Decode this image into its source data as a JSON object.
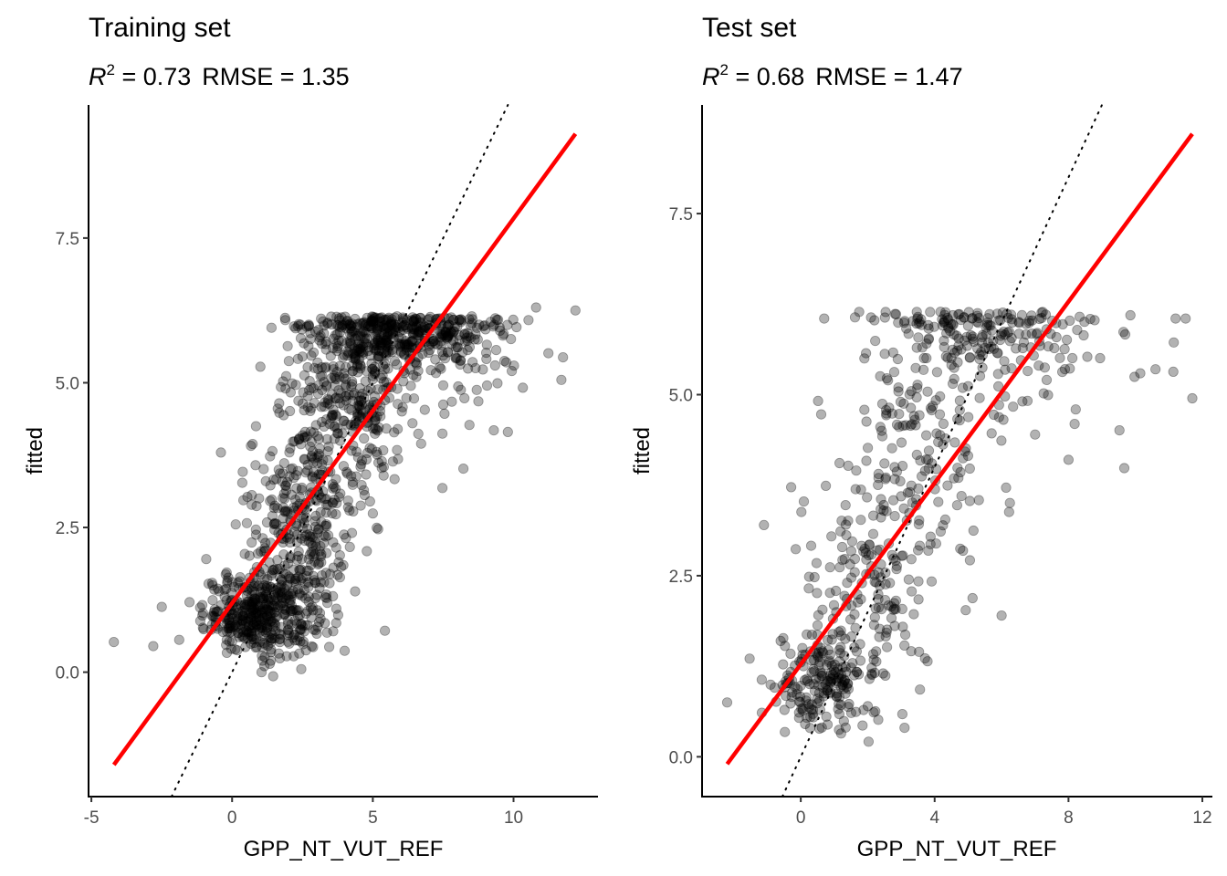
{
  "chart_data": [
    {
      "type": "scatter",
      "title": "Training set",
      "subtitle": {
        "r2_label": "R",
        "r2_sup": "2",
        "r2_value": " = 0.73",
        "rmse_text": "RMSE = 1.35"
      },
      "metrics": {
        "r2": 0.73,
        "rmse": 1.35
      },
      "xlabel": "GPP_NT_VUT_REF",
      "ylabel": "fitted",
      "xlim": [
        -5.1,
        13.0
      ],
      "ylim": [
        -2.15,
        9.8
      ],
      "xticks": [
        -5,
        0,
        5,
        10
      ],
      "xtick_labels": [
        "-5",
        "0",
        "5",
        "10"
      ],
      "yticks": [
        0,
        2.5,
        5,
        7.5
      ],
      "ytick_labels": [
        "0.0",
        "2.5",
        "5.0",
        "7.5"
      ],
      "grid": false,
      "point_color": "#000000",
      "point_alpha": 0.3,
      "regression_line": {
        "color": "#ff0000",
        "x": [
          -4.2,
          12.2
        ],
        "y": [
          -1.6,
          9.3
        ]
      },
      "identity_line": {
        "style": "dotted",
        "color": "#000000",
        "slope": 1,
        "intercept": 0
      },
      "clusters": [
        {
          "cx": 1.0,
          "cy": 1.0,
          "sx": 1.0,
          "sy": 0.35,
          "n": 420
        },
        {
          "cx": 2.5,
          "cy": 2.6,
          "sx": 1.0,
          "sy": 0.9,
          "n": 320
        },
        {
          "cx": 4.3,
          "cy": 4.7,
          "sx": 1.2,
          "sy": 0.75,
          "n": 330
        },
        {
          "cx": 6.0,
          "cy": 5.85,
          "sx": 1.6,
          "sy": 0.3,
          "n": 380
        },
        {
          "cx": 8.0,
          "cy": 5.3,
          "sx": 1.4,
          "sy": 0.6,
          "n": 60
        }
      ],
      "outliers": [
        [
          -4.2,
          0.52
        ],
        [
          -2.8,
          0.45
        ],
        [
          12.2,
          6.25
        ],
        [
          11.7,
          5.05
        ],
        [
          10.8,
          6.3
        ],
        [
          9.8,
          4.15
        ],
        [
          1.4,
          5.95
        ],
        [
          1.9,
          4.9
        ],
        [
          1.2,
          3.3
        ],
        [
          4.9,
          2.95
        ],
        [
          3.7,
          0.85
        ]
      ]
    },
    {
      "type": "scatter",
      "title": "Test set",
      "subtitle": {
        "r2_label": "R",
        "r2_sup": "2",
        "r2_value": " = 0.68",
        "rmse_text": "RMSE = 1.47"
      },
      "metrics": {
        "r2": 0.68,
        "rmse": 1.47
      },
      "xlabel": "GPP_NT_VUT_REF",
      "ylabel": "fitted",
      "xlim": [
        -2.95,
        12.3
      ],
      "ylim": [
        -0.55,
        9.0
      ],
      "xticks": [
        0,
        4,
        8,
        12
      ],
      "xtick_labels": [
        "0",
        "4",
        "8",
        "12"
      ],
      "yticks": [
        0,
        2.5,
        5,
        7.5
      ],
      "ytick_labels": [
        "0.0",
        "2.5",
        "5.0",
        "7.5"
      ],
      "grid": false,
      "point_color": "#000000",
      "point_alpha": 0.3,
      "regression_line": {
        "color": "#ff0000",
        "x": [
          -2.2,
          11.7
        ],
        "y": [
          -0.1,
          8.6
        ]
      },
      "identity_line": {
        "style": "dotted",
        "color": "#000000",
        "slope": 1,
        "intercept": 0
      },
      "clusters": [
        {
          "cx": 0.6,
          "cy": 1.05,
          "sx": 0.75,
          "sy": 0.35,
          "n": 190
        },
        {
          "cx": 2.0,
          "cy": 2.4,
          "sx": 1.0,
          "sy": 0.75,
          "n": 150
        },
        {
          "cx": 3.5,
          "cy": 4.3,
          "sx": 1.2,
          "sy": 0.9,
          "n": 170
        },
        {
          "cx": 5.3,
          "cy": 5.9,
          "sx": 1.5,
          "sy": 0.3,
          "n": 150
        },
        {
          "cx": 7.5,
          "cy": 5.3,
          "sx": 1.6,
          "sy": 0.6,
          "n": 50
        }
      ],
      "outliers": [
        [
          -2.2,
          0.75
        ],
        [
          -1.1,
          3.2
        ],
        [
          11.7,
          4.95
        ],
        [
          11.2,
          6.05
        ],
        [
          11.5,
          6.05
        ],
        [
          10.6,
          5.35
        ],
        [
          6.0,
          1.95
        ],
        [
          0.7,
          6.05
        ],
        [
          1.9,
          5.5
        ],
        [
          8.0,
          4.1
        ],
        [
          3.1,
          0.4
        ]
      ]
    }
  ]
}
